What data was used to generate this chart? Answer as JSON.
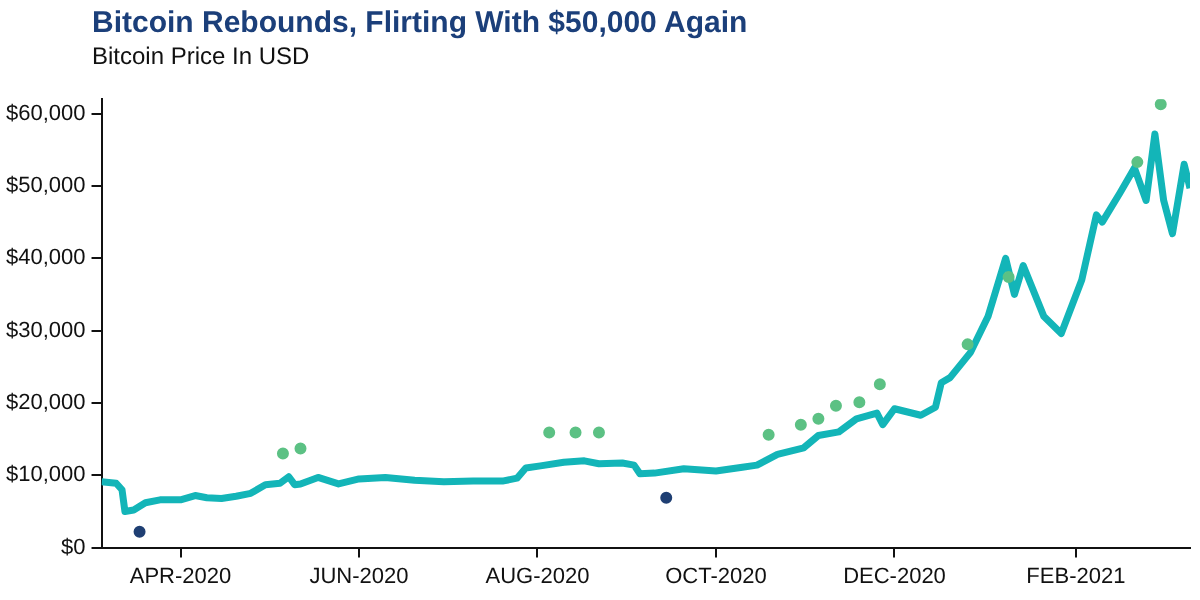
{
  "chart_data": {
    "type": "line",
    "title": "Bitcoin Rebounds, Flirting With $50,000 Again",
    "subtitle": "Bitcoin Price In USD",
    "series": [
      {
        "color": "#13b5b8",
        "marker": "none",
        "x": [
          "2020-03-05",
          "2020-03-10",
          "2020-03-12",
          "2020-03-13",
          "2020-03-16",
          "2020-03-20",
          "2020-03-25",
          "2020-04-01",
          "2020-04-06",
          "2020-04-10",
          "2020-04-15",
          "2020-04-20",
          "2020-04-25",
          "2020-04-30",
          "2020-05-05",
          "2020-05-08",
          "2020-05-10",
          "2020-05-12",
          "2020-05-18",
          "2020-05-25",
          "2020-06-01",
          "2020-06-10",
          "2020-06-20",
          "2020-06-30",
          "2020-07-10",
          "2020-07-20",
          "2020-07-25",
          "2020-07-28",
          "2020-08-02",
          "2020-08-10",
          "2020-08-17",
          "2020-08-22",
          "2020-08-30",
          "2020-09-03",
          "2020-09-05",
          "2020-09-10",
          "2020-09-20",
          "2020-10-01",
          "2020-10-10",
          "2020-10-15",
          "2020-10-22",
          "2020-10-31",
          "2020-11-05",
          "2020-11-12",
          "2020-11-18",
          "2020-11-25",
          "2020-11-27",
          "2020-12-01",
          "2020-12-10",
          "2020-12-15",
          "2020-12-17",
          "2020-12-20",
          "2020-12-27",
          "2021-01-02",
          "2021-01-08",
          "2021-01-11",
          "2021-01-14",
          "2021-01-21",
          "2021-01-27",
          "2021-02-03",
          "2021-02-08",
          "2021-02-10",
          "2021-02-16",
          "2021-02-21",
          "2021-02-25",
          "2021-02-28",
          "2021-03-03",
          "2021-03-06",
          "2021-03-10",
          "2021-03-12"
        ],
        "values": [
          9100,
          8900,
          8000,
          5000,
          5200,
          6200,
          6600,
          6600,
          7200,
          6900,
          6800,
          7100,
          7500,
          8700,
          8900,
          9800,
          8700,
          8800,
          9700,
          8800,
          9500,
          9700,
          9300,
          9100,
          9200,
          9200,
          9600,
          11000,
          11300,
          11800,
          12000,
          11600,
          11700,
          11400,
          10200,
          10300,
          10900,
          10600,
          11100,
          11400,
          12900,
          13800,
          15500,
          16000,
          17800,
          18600,
          17000,
          19200,
          18300,
          19400,
          22800,
          23500,
          27000,
          32000,
          40000,
          35000,
          39000,
          32000,
          29600,
          37000,
          46000,
          45000,
          49000,
          52500,
          48000,
          57200,
          48000,
          43400,
          53000,
          49700
        ]
      },
      {
        "type": "scatter",
        "color": "#5cc184",
        "marker": "circle",
        "x": [
          "2020-05-06",
          "2020-05-12",
          "2020-08-05",
          "2020-08-14",
          "2020-08-22",
          "2020-10-19",
          "2020-10-30",
          "2020-11-05",
          "2020-11-11",
          "2020-11-19",
          "2020-11-26",
          "2020-12-26",
          "2021-01-09",
          "2021-02-22",
          "2021-03-02"
        ],
        "values": [
          13000,
          13700,
          15900,
          15900,
          15900,
          15600,
          17000,
          17800,
          19600,
          20100,
          22600,
          28100,
          37400,
          53300,
          61300
        ]
      },
      {
        "type": "scatter",
        "color": "#1f3f73",
        "marker": "circle",
        "x": [
          "2020-03-18",
          "2020-09-14"
        ],
        "values": [
          2200,
          6900
        ]
      }
    ],
    "xlim": [
      "2020-03-05",
      "2021-03-12"
    ],
    "xticks": [
      {
        "value": "2020-04-01",
        "label": "APR-2020"
      },
      {
        "value": "2020-06-01",
        "label": "JUN-2020"
      },
      {
        "value": "2020-08-01",
        "label": "AUG-2020"
      },
      {
        "value": "2020-10-01",
        "label": "OCT-2020"
      },
      {
        "value": "2020-12-01",
        "label": "DEC-2020"
      },
      {
        "value": "2021-02-01",
        "label": "FEB-2021"
      }
    ],
    "ylim": [
      0,
      62000
    ],
    "yticks": [
      {
        "value": 0,
        "label": "$0"
      },
      {
        "value": 10000,
        "label": "$10,000"
      },
      {
        "value": 20000,
        "label": "$20,000"
      },
      {
        "value": 30000,
        "label": "$30,000"
      },
      {
        "value": 40000,
        "label": "$40,000"
      },
      {
        "value": 50000,
        "label": "$50,000"
      },
      {
        "value": 60000,
        "label": "$60,000"
      }
    ],
    "grid": false,
    "legend": false
  }
}
